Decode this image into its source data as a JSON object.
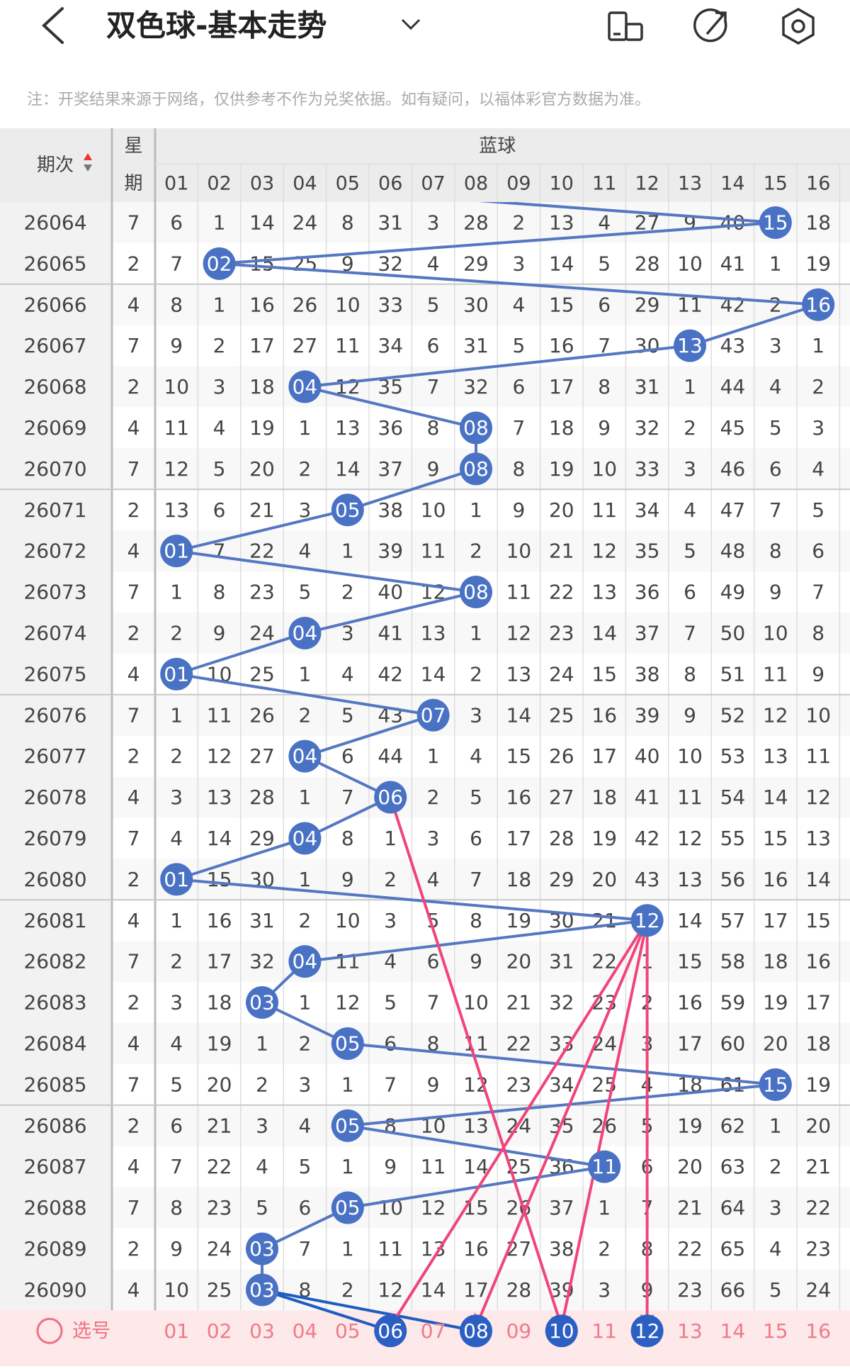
{
  "header": {
    "title": "双色球-基本走势"
  },
  "notice": "注：开奖结果来源于网络，仅供参考不作为兑奖依据。如有疑问，以福体彩官方数据为准。",
  "table": {
    "columns": {
      "period": "期次",
      "weekday_top": "星",
      "weekday_bottom": "期",
      "group": "蓝球",
      "balls": [
        "01",
        "02",
        "03",
        "04",
        "05",
        "06",
        "07",
        "08",
        "09",
        "10",
        "11",
        "12",
        "13",
        "14",
        "15",
        "16"
      ]
    },
    "rows": [
      {
        "period": 26064,
        "weekday": 7,
        "cells": [
          6,
          1,
          14,
          24,
          8,
          31,
          3,
          28,
          2,
          13,
          4,
          27,
          9,
          40,
          "15",
          18
        ]
      },
      {
        "period": 26065,
        "weekday": 2,
        "cells": [
          7,
          "02",
          15,
          25,
          9,
          32,
          4,
          29,
          3,
          14,
          5,
          28,
          10,
          41,
          1,
          19
        ]
      },
      {
        "period": 26066,
        "weekday": 4,
        "cells": [
          8,
          1,
          16,
          26,
          10,
          33,
          5,
          30,
          4,
          15,
          6,
          29,
          11,
          42,
          2,
          "16"
        ]
      },
      {
        "period": 26067,
        "weekday": 7,
        "cells": [
          9,
          2,
          17,
          27,
          11,
          34,
          6,
          31,
          5,
          16,
          7,
          30,
          "13",
          43,
          3,
          1
        ]
      },
      {
        "period": 26068,
        "weekday": 2,
        "cells": [
          10,
          3,
          18,
          "04",
          12,
          35,
          7,
          32,
          6,
          17,
          8,
          31,
          1,
          44,
          4,
          2
        ]
      },
      {
        "period": 26069,
        "weekday": 4,
        "cells": [
          11,
          4,
          19,
          1,
          13,
          36,
          8,
          "08",
          7,
          18,
          9,
          32,
          2,
          45,
          5,
          3
        ]
      },
      {
        "period": 26070,
        "weekday": 7,
        "cells": [
          12,
          5,
          20,
          2,
          14,
          37,
          9,
          "08",
          8,
          19,
          10,
          33,
          3,
          46,
          6,
          4
        ]
      },
      {
        "period": 26071,
        "weekday": 2,
        "cells": [
          13,
          6,
          21,
          3,
          "05",
          38,
          10,
          1,
          9,
          20,
          11,
          34,
          4,
          47,
          7,
          5
        ]
      },
      {
        "period": 26072,
        "weekday": 4,
        "cells": [
          "01",
          7,
          22,
          4,
          1,
          39,
          11,
          2,
          10,
          21,
          12,
          35,
          5,
          48,
          8,
          6
        ]
      },
      {
        "period": 26073,
        "weekday": 7,
        "cells": [
          1,
          8,
          23,
          5,
          2,
          40,
          12,
          "08",
          11,
          22,
          13,
          36,
          6,
          49,
          9,
          7
        ]
      },
      {
        "period": 26074,
        "weekday": 2,
        "cells": [
          2,
          9,
          24,
          "04",
          3,
          41,
          13,
          1,
          12,
          23,
          14,
          37,
          7,
          50,
          10,
          8
        ]
      },
      {
        "period": 26075,
        "weekday": 4,
        "cells": [
          "01",
          10,
          25,
          1,
          4,
          42,
          14,
          2,
          13,
          24,
          15,
          38,
          8,
          51,
          11,
          9
        ]
      },
      {
        "period": 26076,
        "weekday": 7,
        "cells": [
          1,
          11,
          26,
          2,
          5,
          43,
          "07",
          3,
          14,
          25,
          16,
          39,
          9,
          52,
          12,
          10
        ]
      },
      {
        "period": 26077,
        "weekday": 2,
        "cells": [
          2,
          12,
          27,
          "04",
          6,
          44,
          1,
          4,
          15,
          26,
          17,
          40,
          10,
          53,
          13,
          11
        ]
      },
      {
        "period": 26078,
        "weekday": 4,
        "cells": [
          3,
          13,
          28,
          1,
          7,
          "06",
          2,
          5,
          16,
          27,
          18,
          41,
          11,
          54,
          14,
          12
        ]
      },
      {
        "period": 26079,
        "weekday": 7,
        "cells": [
          4,
          14,
          29,
          "04",
          8,
          1,
          3,
          6,
          17,
          28,
          19,
          42,
          12,
          55,
          15,
          13
        ]
      },
      {
        "period": 26080,
        "weekday": 2,
        "cells": [
          "01",
          15,
          30,
          1,
          9,
          2,
          4,
          7,
          18,
          29,
          20,
          43,
          13,
          56,
          16,
          14
        ]
      },
      {
        "period": 26081,
        "weekday": 4,
        "cells": [
          1,
          16,
          31,
          2,
          10,
          3,
          5,
          8,
          19,
          30,
          21,
          "12",
          14,
          57,
          17,
          15
        ]
      },
      {
        "period": 26082,
        "weekday": 7,
        "cells": [
          2,
          17,
          32,
          "04",
          11,
          4,
          6,
          9,
          20,
          31,
          22,
          1,
          15,
          58,
          18,
          16
        ]
      },
      {
        "period": 26083,
        "weekday": 2,
        "cells": [
          3,
          18,
          "03",
          1,
          12,
          5,
          7,
          10,
          21,
          32,
          23,
          2,
          16,
          59,
          19,
          17
        ]
      },
      {
        "period": 26084,
        "weekday": 4,
        "cells": [
          4,
          19,
          1,
          2,
          "05",
          6,
          8,
          11,
          22,
          33,
          24,
          3,
          17,
          60,
          20,
          18
        ]
      },
      {
        "period": 26085,
        "weekday": 7,
        "cells": [
          5,
          20,
          2,
          3,
          1,
          7,
          9,
          12,
          23,
          34,
          25,
          4,
          18,
          61,
          "15",
          19
        ]
      },
      {
        "period": 26086,
        "weekday": 2,
        "cells": [
          6,
          21,
          3,
          4,
          "05",
          8,
          10,
          13,
          24,
          35,
          26,
          5,
          19,
          62,
          1,
          20
        ]
      },
      {
        "period": 26087,
        "weekday": 4,
        "cells": [
          7,
          22,
          4,
          5,
          1,
          9,
          11,
          14,
          25,
          36,
          "11",
          6,
          20,
          63,
          2,
          21
        ]
      },
      {
        "period": 26088,
        "weekday": 7,
        "cells": [
          8,
          23,
          5,
          6,
          "05",
          10,
          12,
          15,
          26,
          37,
          1,
          7,
          21,
          64,
          3,
          22
        ]
      },
      {
        "period": 26089,
        "weekday": 2,
        "cells": [
          9,
          24,
          "03",
          7,
          1,
          11,
          13,
          16,
          27,
          38,
          2,
          8,
          22,
          65,
          4,
          23
        ]
      },
      {
        "period": 26090,
        "weekday": 4,
        "cells": [
          10,
          25,
          "03",
          8,
          2,
          12,
          14,
          17,
          28,
          39,
          3,
          9,
          23,
          66,
          5,
          24
        ]
      }
    ]
  },
  "footer": {
    "label": "选号",
    "balls": [
      {
        "label": "01",
        "selected": false
      },
      {
        "label": "02",
        "selected": false
      },
      {
        "label": "03",
        "selected": false
      },
      {
        "label": "04",
        "selected": false
      },
      {
        "label": "05",
        "selected": false
      },
      {
        "label": "06",
        "selected": true
      },
      {
        "label": "07",
        "selected": false
      },
      {
        "label": "08",
        "selected": true
      },
      {
        "label": "09",
        "selected": false
      },
      {
        "label": "10",
        "selected": true
      },
      {
        "label": "11",
        "selected": false
      },
      {
        "label": "12",
        "selected": true
      },
      {
        "label": "13",
        "selected": false
      },
      {
        "label": "14",
        "selected": false
      },
      {
        "label": "15",
        "selected": false
      },
      {
        "label": "16",
        "selected": false
      }
    ]
  }
}
